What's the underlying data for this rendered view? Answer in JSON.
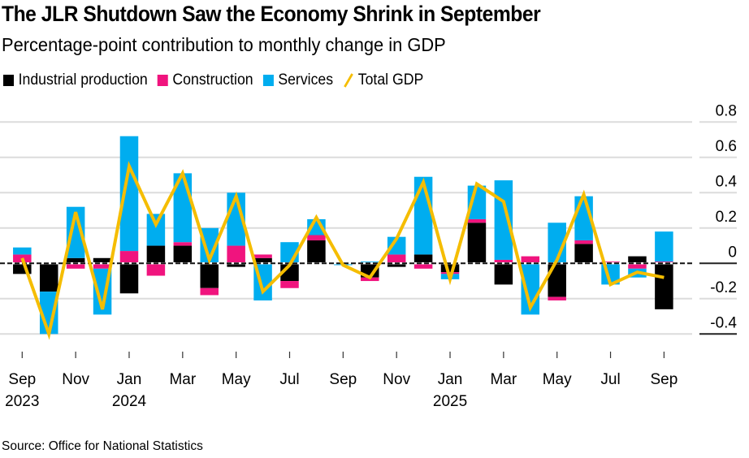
{
  "title": "The JLR Shutdown Saw the Economy Shrink in September",
  "subtitle": "Percentage-point contribution to monthly change in GDP",
  "source": "Source: Office for National Statistics",
  "legend": [
    {
      "label": "Industrial production",
      "color": "#000000",
      "kind": "square"
    },
    {
      "label": "Construction",
      "color": "#f0147e",
      "kind": "square"
    },
    {
      "label": "Services",
      "color": "#00adef",
      "kind": "square"
    },
    {
      "label": "Total GDP",
      "color": "#f5bd00",
      "kind": "line"
    }
  ],
  "chart_data": {
    "type": "bar",
    "stacked": true,
    "title": "The JLR Shutdown Saw the Economy Shrink in September",
    "subtitle": "Percentage-point contribution to monthly change in GDP",
    "xlabel": "",
    "ylabel": "",
    "ylim": [
      -0.45,
      0.85
    ],
    "yticks": [
      0.8,
      0.6,
      0.4,
      0.2,
      0,
      -0.2,
      -0.4
    ],
    "ytick_labels": [
      "0.8",
      "0.6",
      "0.4",
      "0.2",
      "0",
      "-0.2",
      "-0.4"
    ],
    "y_axis_side": "right",
    "grid": true,
    "legend_position": "top-left",
    "categories": [
      "Sep 2023",
      "Oct 2023",
      "Nov 2023",
      "Dec 2023",
      "Jan 2024",
      "Feb 2024",
      "Mar 2024",
      "Apr 2024",
      "May 2024",
      "Jun 2024",
      "Jul 2024",
      "Aug 2024",
      "Sep 2024",
      "Oct 2024",
      "Nov 2024",
      "Dec 2024",
      "Jan 2025",
      "Feb 2025",
      "Mar 2025",
      "Apr 2025",
      "May 2025",
      "Jun 2025",
      "Jul 2025",
      "Aug 2025",
      "Sep 2025"
    ],
    "xtick_labels": [
      {
        "index": 0,
        "month": "Sep",
        "year": "2023"
      },
      {
        "index": 2,
        "month": "Nov",
        "year": ""
      },
      {
        "index": 4,
        "month": "Jan",
        "year": "2024"
      },
      {
        "index": 6,
        "month": "Mar",
        "year": ""
      },
      {
        "index": 8,
        "month": "May",
        "year": ""
      },
      {
        "index": 10,
        "month": "Jul",
        "year": ""
      },
      {
        "index": 12,
        "month": "Sep",
        "year": ""
      },
      {
        "index": 14,
        "month": "Nov",
        "year": ""
      },
      {
        "index": 16,
        "month": "Jan",
        "year": "2025"
      },
      {
        "index": 18,
        "month": "Mar",
        "year": ""
      },
      {
        "index": 20,
        "month": "May",
        "year": ""
      },
      {
        "index": 22,
        "month": "Jul",
        "year": ""
      },
      {
        "index": 24,
        "month": "Sep",
        "year": ""
      }
    ],
    "series": [
      {
        "name": "Industrial production",
        "type": "bar",
        "color": "#000000",
        "values": [
          -0.06,
          -0.16,
          0.03,
          0.03,
          -0.17,
          0.1,
          0.1,
          -0.14,
          -0.02,
          0.03,
          -0.1,
          0.13,
          0.0,
          -0.08,
          -0.02,
          0.05,
          -0.05,
          0.23,
          -0.12,
          0.0,
          -0.19,
          0.11,
          0.0,
          0.04,
          -0.26
        ]
      },
      {
        "name": "Construction",
        "type": "bar",
        "color": "#f0147e",
        "values": [
          0.05,
          0.0,
          -0.03,
          -0.03,
          0.07,
          -0.07,
          0.02,
          -0.04,
          0.1,
          0.02,
          -0.04,
          0.03,
          0.0,
          -0.02,
          0.05,
          -0.03,
          -0.01,
          0.02,
          0.02,
          0.04,
          -0.02,
          0.02,
          0.01,
          -0.03,
          0.01
        ]
      },
      {
        "name": "Services",
        "type": "bar",
        "color": "#00adef",
        "values": [
          0.04,
          -0.24,
          0.29,
          -0.26,
          0.65,
          0.18,
          0.39,
          0.2,
          0.3,
          -0.21,
          0.12,
          0.09,
          -0.01,
          0.01,
          0.1,
          0.44,
          -0.03,
          0.19,
          0.45,
          -0.29,
          0.23,
          0.25,
          -0.12,
          -0.05,
          0.17
        ]
      },
      {
        "name": "Total GDP",
        "type": "line",
        "color": "#f5bd00",
        "values": [
          0.03,
          -0.4,
          0.29,
          -0.26,
          0.55,
          0.22,
          0.51,
          0.02,
          0.38,
          -0.16,
          -0.01,
          0.26,
          -0.01,
          -0.08,
          0.14,
          0.46,
          -0.09,
          0.45,
          0.35,
          -0.25,
          0.02,
          0.39,
          -0.12,
          -0.05,
          -0.08
        ]
      }
    ]
  }
}
